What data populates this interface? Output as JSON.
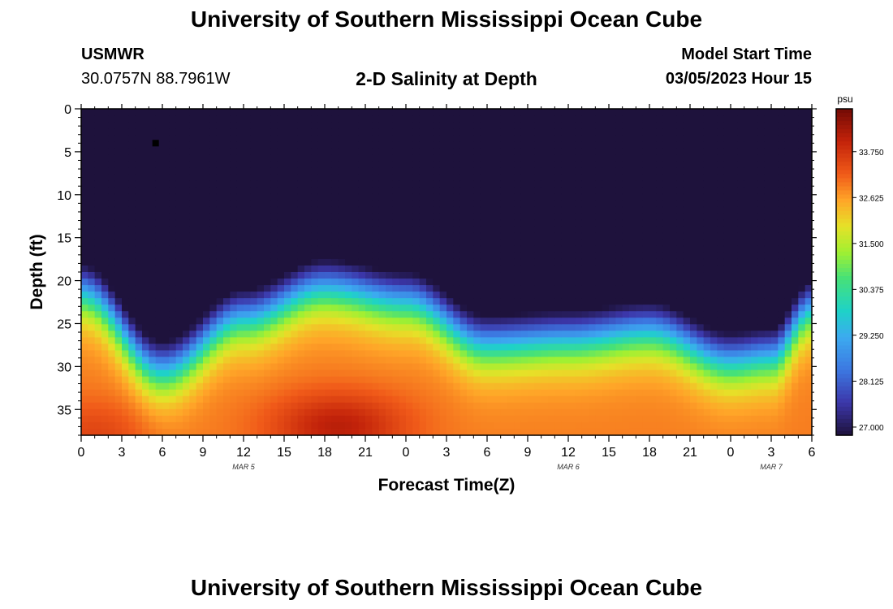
{
  "header": {
    "title": "University of Southern Mississippi Ocean Cube",
    "station": "USMWR",
    "coords": "30.0757N  88.7961W",
    "subtitle": "2-D Salinity at Depth",
    "model_start_label": "Model Start Time",
    "model_start_value": "03/05/2023 Hour 15"
  },
  "footer": {
    "title": "University of Southern Mississippi Ocean Cube"
  },
  "chart_data": {
    "type": "heatmap",
    "title": "2-D Salinity at Depth",
    "xlabel": "Forecast Time(Z)",
    "ylabel": "Depth (ft)",
    "x_range_hours": [
      0,
      54
    ],
    "x_ticks": [
      "0",
      "3",
      "6",
      "9",
      "12",
      "15",
      "18",
      "21",
      "0",
      "3",
      "6",
      "9",
      "12",
      "15",
      "18",
      "21",
      "0",
      "3",
      "6"
    ],
    "x_tick_step_hours": 3,
    "date_labels": [
      {
        "label": "MAR 5",
        "hour": 12
      },
      {
        "label": "MAR 6",
        "hour": 36
      },
      {
        "label": "MAR 7",
        "hour": 51
      }
    ],
    "ylim": [
      0,
      38
    ],
    "y_ticks": [
      0,
      5,
      10,
      15,
      20,
      25,
      30,
      35
    ],
    "colorbar": {
      "unit": "psu",
      "min": 26.8,
      "max": 34.8,
      "ticks": [
        "33.750",
        "32.625",
        "31.500",
        "30.375",
        "29.250",
        "28.125",
        "27.000"
      ],
      "tick_values": [
        33.75,
        32.625,
        31.5,
        30.375,
        29.25,
        28.125,
        27.0
      ]
    },
    "interface_depth_profile": {
      "hours": [
        0,
        6,
        12,
        18,
        24,
        30,
        36,
        42,
        48,
        51,
        54
      ],
      "depth_ft": [
        21,
        30,
        24,
        20.5,
        22,
        27,
        26.5,
        25.5,
        29,
        28.5,
        23
      ]
    },
    "minimum_salinity": {
      "hour": 5.5,
      "depth_ft": 4,
      "value": 26.9
    },
    "marker": {
      "hour": 5.5,
      "depth_ft": 4
    }
  }
}
